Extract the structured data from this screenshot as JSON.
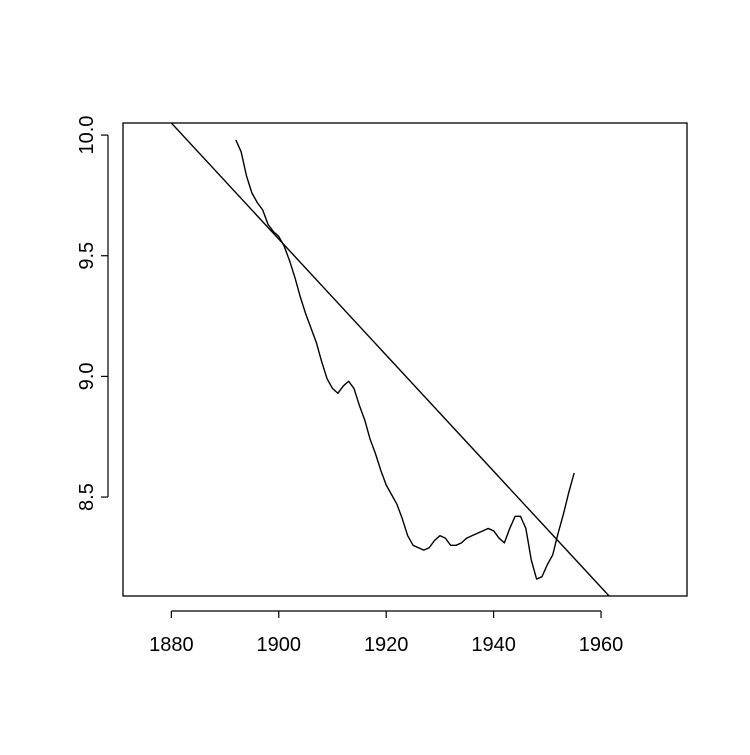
{
  "chart_data": {
    "type": "line",
    "title": "",
    "xlabel": "",
    "ylabel": "",
    "xlim": [
      1871,
      1976
    ],
    "ylim": [
      8.09,
      10.05
    ],
    "x_ticks": [
      1880,
      1900,
      1920,
      1940,
      1960
    ],
    "x_tick_labels": [
      "1880",
      "1900",
      "1920",
      "1940",
      "1960"
    ],
    "y_ticks": [
      8.5,
      9.0,
      9.5,
      10.0
    ],
    "y_tick_labels": [
      "8.5",
      "9.0",
      "9.5",
      "10.0"
    ],
    "grid": false,
    "legend": "none",
    "line_color": "#000000",
    "series": [
      {
        "x": [
          1892,
          1893,
          1894,
          1895,
          1896,
          1897,
          1898,
          1899,
          1900,
          1901,
          1902,
          1903,
          1904,
          1905,
          1906,
          1907,
          1908,
          1909,
          1910,
          1911,
          1912,
          1913,
          1914,
          1915,
          1916,
          1917,
          1918,
          1919,
          1920,
          1921,
          1922,
          1923,
          1924,
          1925,
          1926,
          1927,
          1928,
          1929,
          1930,
          1931,
          1932,
          1933,
          1934,
          1935,
          1936,
          1937,
          1938,
          1939,
          1940,
          1941,
          1942,
          1943,
          1944,
          1945,
          1946,
          1947,
          1948,
          1949,
          1950,
          1951,
          1952,
          1953,
          1954,
          1955
        ],
        "y": [
          9.98,
          9.93,
          9.83,
          9.76,
          9.72,
          9.69,
          9.63,
          9.6,
          9.58,
          9.54,
          9.48,
          9.41,
          9.33,
          9.26,
          9.2,
          9.14,
          9.06,
          8.99,
          8.95,
          8.93,
          8.96,
          8.98,
          8.95,
          8.88,
          8.82,
          8.74,
          8.68,
          8.61,
          8.55,
          8.51,
          8.47,
          8.41,
          8.34,
          8.3,
          8.29,
          8.28,
          8.29,
          8.32,
          8.34,
          8.33,
          8.3,
          8.3,
          8.31,
          8.33,
          8.34,
          8.35,
          8.36,
          8.37,
          8.36,
          8.33,
          8.31,
          8.37,
          8.42,
          8.42,
          8.37,
          8.24,
          8.16,
          8.17,
          8.22,
          8.26,
          8.35,
          8.43,
          8.52,
          8.6
        ]
      },
      {
        "x": [
          1880,
          1961.5
        ],
        "y": [
          10.05,
          8.09
        ]
      }
    ]
  }
}
